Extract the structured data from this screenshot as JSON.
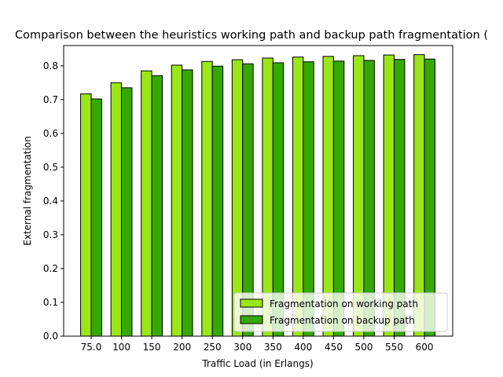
{
  "chart_data": {
    "type": "bar",
    "title": "Comparison between the heuristics working path and backup path fragmentation (",
    "xlabel": "Traffic Load (in Erlangs)",
    "ylabel": "External fragmentation",
    "categories": [
      "75.0",
      "100",
      "150",
      "200",
      "250",
      "300",
      "350",
      "400",
      "450",
      "500",
      "550",
      "600"
    ],
    "ylim": [
      0,
      0.86
    ],
    "yticks": [
      "0.0",
      "0.1",
      "0.2",
      "0.3",
      "0.4",
      "0.5",
      "0.6",
      "0.7",
      "0.8"
    ],
    "grid": false,
    "legend_position": "lower right",
    "series": [
      {
        "name": "Fragmentation on working path",
        "color": "#9ae617",
        "values": [
          0.717,
          0.75,
          0.785,
          0.802,
          0.813,
          0.818,
          0.823,
          0.826,
          0.828,
          0.83,
          0.832,
          0.833
        ]
      },
      {
        "name": "Fragmentation on backup path",
        "color": "#36a802",
        "values": [
          0.702,
          0.735,
          0.771,
          0.788,
          0.799,
          0.806,
          0.809,
          0.812,
          0.814,
          0.816,
          0.819,
          0.82
        ]
      }
    ]
  }
}
